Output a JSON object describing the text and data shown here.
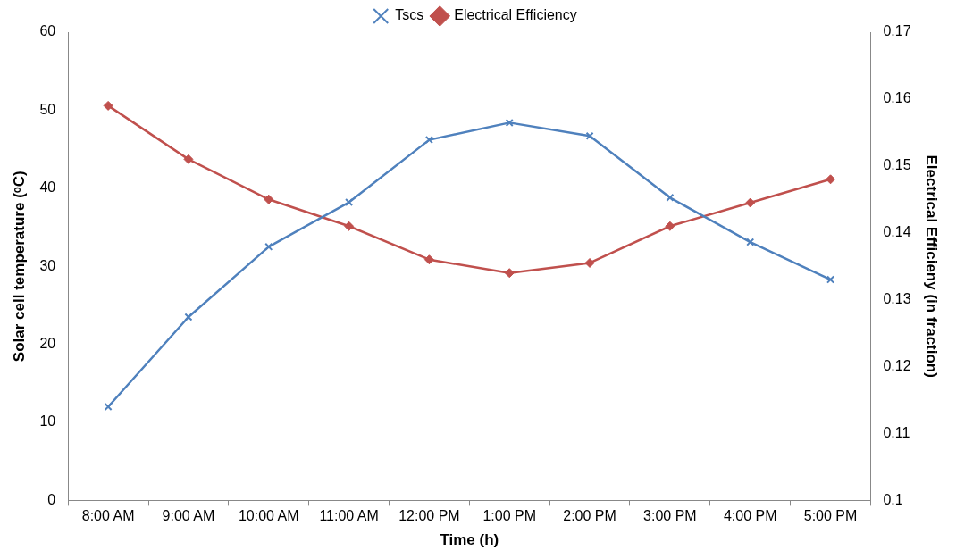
{
  "chart_data": {
    "type": "line",
    "xlabel": "Time (h)",
    "ylabel": "Solar cell temperature (ᵒC)",
    "y2label": "Electrical Efficieny (in fraction)",
    "categories": [
      "8:00 AM",
      "9:00 AM",
      "10:00 AM",
      "11:00 AM",
      "12:00 PM",
      "1:00 PM",
      "2:00 PM",
      "3:00 PM",
      "4:00 PM",
      "5:00 PM"
    ],
    "series": [
      {
        "name": "Tscs",
        "color": "#4f81bd",
        "marker": "cross",
        "values": [
          12.0,
          23.5,
          32.5,
          38.2,
          46.2,
          48.4,
          46.7,
          38.8,
          33.1,
          28.3
        ]
      },
      {
        "name": "Electrical Efficiency",
        "color": "#c0504d",
        "marker": "diamond",
        "axis": "y2",
        "values": [
          0.159,
          0.151,
          0.145,
          0.141,
          0.136,
          0.134,
          0.1355,
          0.141,
          0.1445,
          0.148
        ]
      }
    ],
    "ylim": [
      0,
      60
    ],
    "yticks": [
      0,
      10,
      20,
      30,
      40,
      50,
      60
    ],
    "y2lim": [
      0.1,
      0.17
    ],
    "y2ticks": [
      0.1,
      0.11,
      0.12,
      0.13,
      0.14,
      0.15,
      0.16,
      0.17
    ],
    "grid": false,
    "legend": "top",
    "line_style": "solid"
  }
}
